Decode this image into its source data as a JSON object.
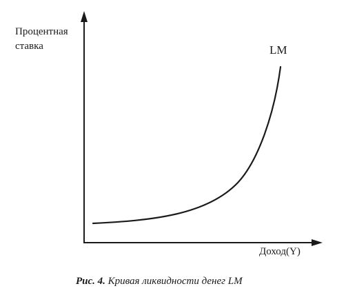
{
  "diagram": {
    "y_axis_label_line1": "Процентная",
    "y_axis_label_line2": "ставка",
    "x_axis_label": "Доход(Y)",
    "curve_label": "LM",
    "caption_prefix": "Рис. 4.",
    "caption_text": " Кривая ликвидности денег LM"
  },
  "colors": {
    "ink": "#1a1a1a",
    "background": "#ffffff"
  }
}
